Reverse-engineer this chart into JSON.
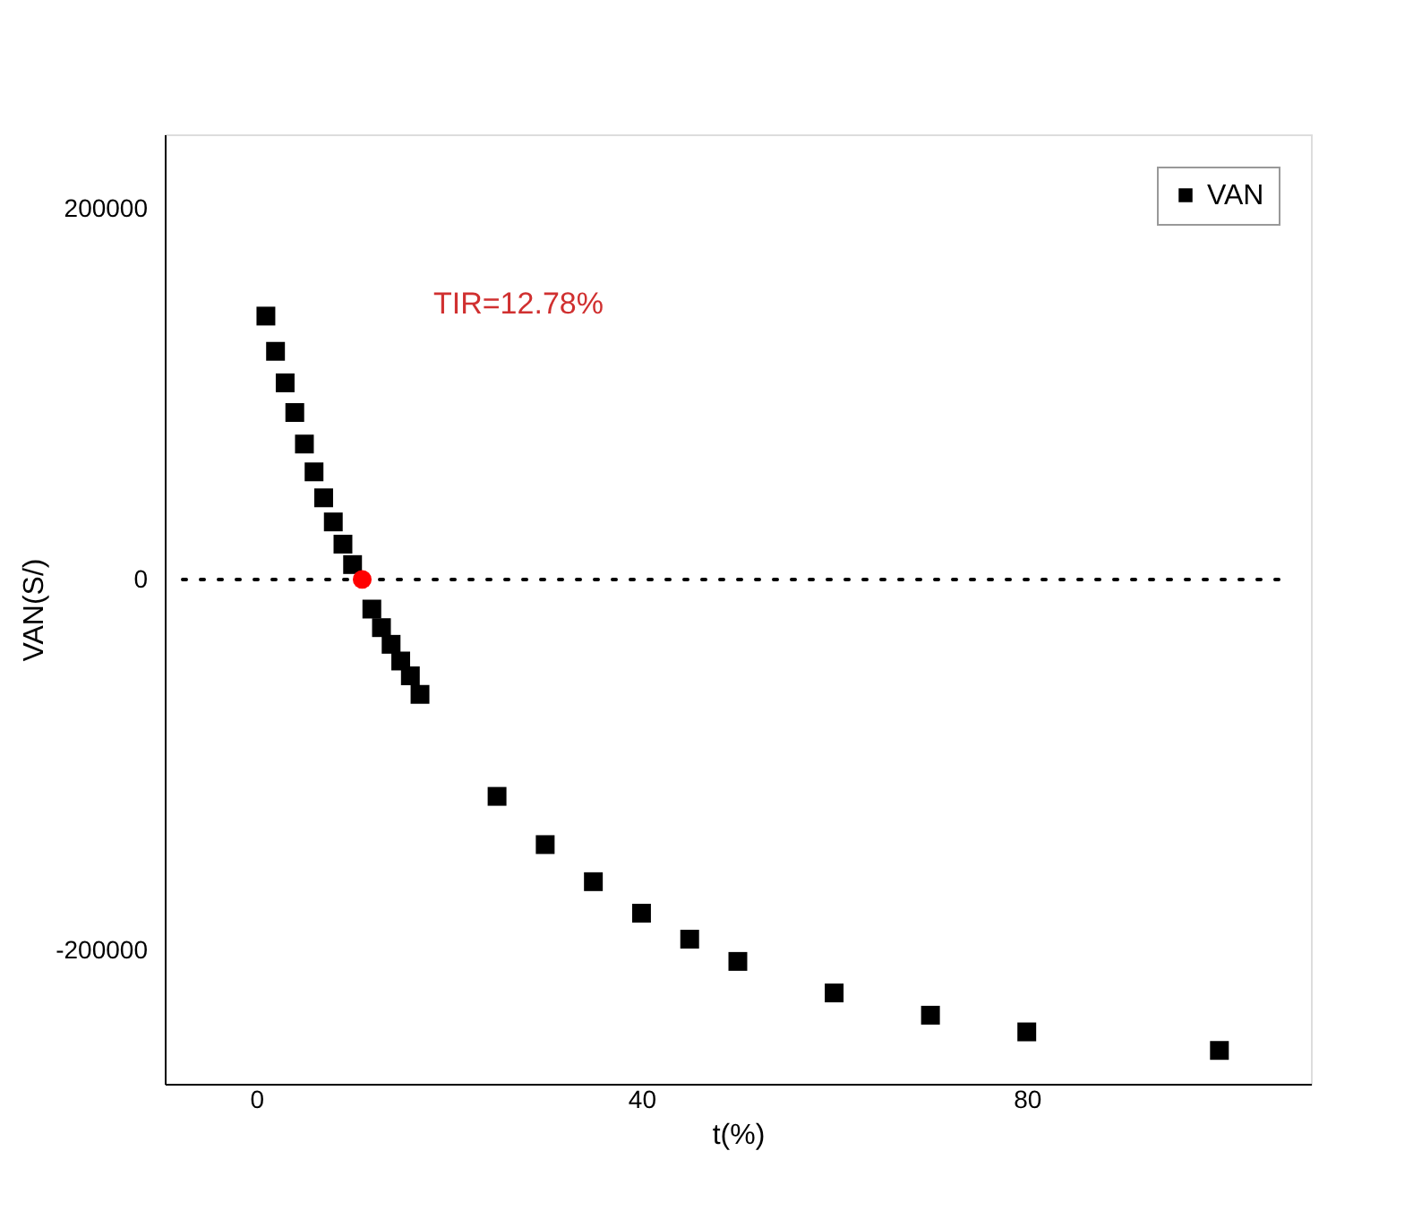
{
  "chart_data": {
    "type": "scatter",
    "xlabel": "t(%)",
    "ylabel": "VAN(S/)",
    "xlim": [
      -9.5,
      109.5
    ],
    "xticks": [
      0,
      40,
      80
    ],
    "ylim": [
      -272000,
      240000
    ],
    "yticks": [
      -200000,
      0,
      200000
    ],
    "series": [
      {
        "name": "VAN",
        "color": "#000000",
        "marker": "square",
        "x": [
          1,
          2,
          3,
          4,
          5,
          6,
          7,
          8,
          9,
          10,
          12,
          13,
          14,
          15,
          16,
          17,
          25,
          30,
          35,
          40,
          45,
          50,
          60,
          70,
          80,
          100
        ],
        "values": [
          142000,
          123000,
          106000,
          90000,
          73000,
          58000,
          44000,
          31000,
          19000,
          8000,
          -16000,
          -26000,
          -35000,
          -44000,
          -52000,
          -62000,
          -117000,
          -143000,
          -163000,
          -180000,
          -194000,
          -206000,
          -223000,
          -235000,
          -244000,
          -254000
        ]
      },
      {
        "color": "#ff0000",
        "marker": "circle",
        "x": [
          11
        ],
        "values": [
          0
        ]
      }
    ],
    "annotations": [
      "TIR=12.78%"
    ],
    "ref_lines": [
      {
        "axis": "y",
        "value": 0,
        "line_style": "dotted",
        "color": "#000000"
      }
    ],
    "grid": false,
    "legend": "top right"
  }
}
